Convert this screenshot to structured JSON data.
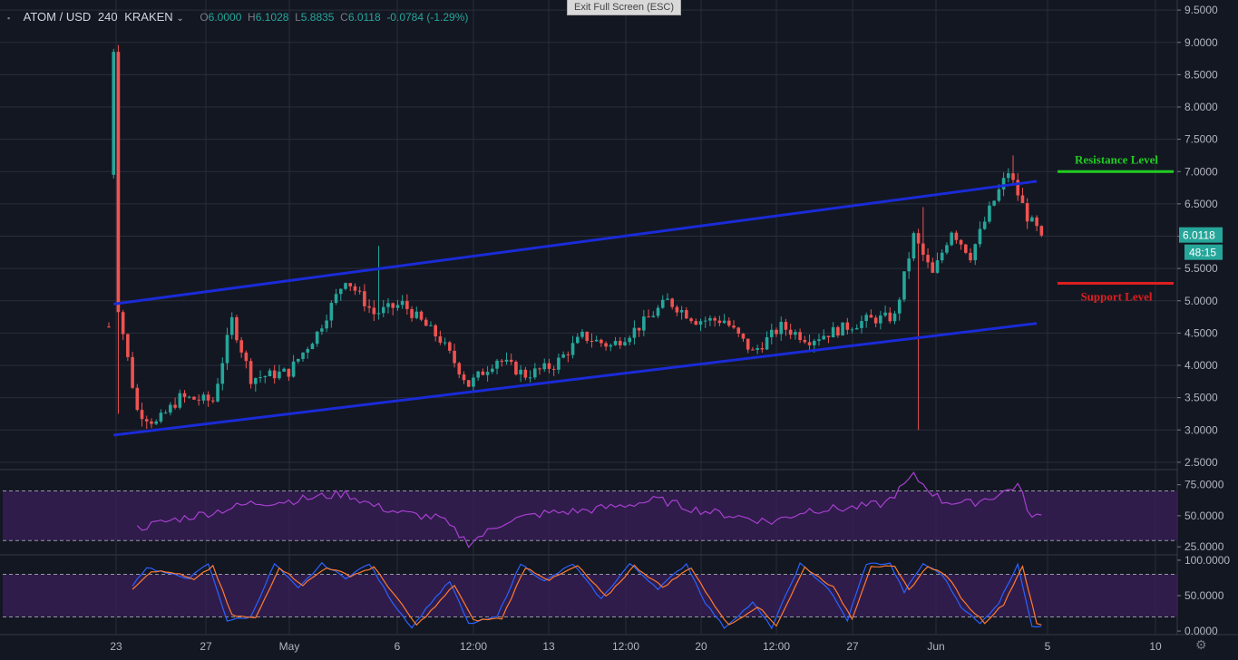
{
  "header": {
    "symbol": "ATOM / USD",
    "interval": "240",
    "exchange": "KRAKEN",
    "o_label": "O",
    "o_value": "6.0000",
    "h_label": "H",
    "h_value": "6.1028",
    "l_label": "L",
    "l_value": "5.8835",
    "c_label": "C",
    "c_value": "6.0118",
    "change": "-0.0784 (-1.29%)"
  },
  "exit_fullscreen_label": "Exit Full Screen (ESC)",
  "chart_data": [
    {
      "type": "candlestick",
      "x_ticks": [
        "23",
        "27",
        "May",
        "6",
        "12:00",
        "13",
        "12:00",
        "20",
        "12:00",
        "27",
        "Jun",
        "5",
        "10"
      ],
      "y_ticks": [
        "9.5000",
        "9.0000",
        "8.5000",
        "8.0000",
        "7.5000",
        "7.0000",
        "6.5000",
        "6.0000",
        "5.5000",
        "5.0000",
        "4.5000",
        "4.0000",
        "3.5000",
        "3.0000",
        "2.5000"
      ],
      "ylim": [
        2.4,
        9.6
      ],
      "last_price": "6.0118",
      "countdown": "48:15",
      "key_points": [
        {
          "x": 0,
          "value": 4.6
        },
        {
          "x": 1,
          "value": 8.9
        },
        {
          "x": 2,
          "value": 4.9
        },
        {
          "x": 6,
          "value": 3.3
        },
        {
          "x": 10,
          "value": 3.1
        },
        {
          "x": 15,
          "value": 3.5
        },
        {
          "x": 22,
          "value": 3.45
        },
        {
          "x": 26,
          "value": 4.7
        },
        {
          "x": 30,
          "value": 3.8
        },
        {
          "x": 38,
          "value": 3.9
        },
        {
          "x": 44,
          "value": 4.5
        },
        {
          "x": 50,
          "value": 5.35
        },
        {
          "x": 56,
          "value": 4.8
        },
        {
          "x": 62,
          "value": 4.95
        },
        {
          "x": 70,
          "value": 4.4
        },
        {
          "x": 76,
          "value": 3.7
        },
        {
          "x": 82,
          "value": 4.1
        },
        {
          "x": 88,
          "value": 3.85
        },
        {
          "x": 94,
          "value": 4.0
        },
        {
          "x": 100,
          "value": 4.45
        },
        {
          "x": 106,
          "value": 4.3
        },
        {
          "x": 112,
          "value": 4.6
        },
        {
          "x": 118,
          "value": 5.0
        },
        {
          "x": 124,
          "value": 4.7
        },
        {
          "x": 130,
          "value": 4.7
        },
        {
          "x": 136,
          "value": 4.2
        },
        {
          "x": 142,
          "value": 4.6
        },
        {
          "x": 148,
          "value": 4.4
        },
        {
          "x": 154,
          "value": 4.55
        },
        {
          "x": 160,
          "value": 4.7
        },
        {
          "x": 166,
          "value": 4.75
        },
        {
          "x": 170,
          "value": 6.0
        },
        {
          "x": 174,
          "value": 5.4
        },
        {
          "x": 178,
          "value": 6.1
        },
        {
          "x": 182,
          "value": 5.7
        },
        {
          "x": 186,
          "value": 6.4
        },
        {
          "x": 190,
          "value": 7.0
        },
        {
          "x": 194,
          "value": 6.3
        },
        {
          "x": 197,
          "value": 6.01
        }
      ],
      "channel": [
        {
          "name": "upper",
          "from": [
            1,
            4.95
          ],
          "to": [
            196,
            6.85
          ]
        },
        {
          "name": "lower",
          "from": [
            1,
            2.92
          ],
          "to": [
            196,
            4.65
          ]
        }
      ],
      "levels": [
        {
          "label": "Resistance Level",
          "value": 7.0,
          "color": "#22cc22"
        },
        {
          "label": "Support Level",
          "value": 5.27,
          "color": "#dd1f1f"
        }
      ],
      "colors": {
        "up": "#26a69a",
        "down": "#ef5350",
        "channel": "#1a2bd8",
        "grid": "#2a2e39"
      }
    },
    {
      "type": "line",
      "indicator": "rsi",
      "y_ticks": [
        "75.0000",
        "50.0000",
        "25.0000"
      ],
      "ylim": [
        20,
        85
      ],
      "bands": [
        70,
        30
      ],
      "key_points": [
        {
          "x": 6,
          "value": 40
        },
        {
          "x": 14,
          "value": 47
        },
        {
          "x": 22,
          "value": 53
        },
        {
          "x": 30,
          "value": 60
        },
        {
          "x": 38,
          "value": 62
        },
        {
          "x": 44,
          "value": 65
        },
        {
          "x": 50,
          "value": 68
        },
        {
          "x": 56,
          "value": 58
        },
        {
          "x": 62,
          "value": 52
        },
        {
          "x": 70,
          "value": 48
        },
        {
          "x": 76,
          "value": 28
        },
        {
          "x": 84,
          "value": 46
        },
        {
          "x": 92,
          "value": 52
        },
        {
          "x": 100,
          "value": 54
        },
        {
          "x": 108,
          "value": 58
        },
        {
          "x": 116,
          "value": 63
        },
        {
          "x": 124,
          "value": 55
        },
        {
          "x": 132,
          "value": 50
        },
        {
          "x": 140,
          "value": 45
        },
        {
          "x": 148,
          "value": 55
        },
        {
          "x": 156,
          "value": 56
        },
        {
          "x": 164,
          "value": 60
        },
        {
          "x": 170,
          "value": 82
        },
        {
          "x": 176,
          "value": 62
        },
        {
          "x": 182,
          "value": 60
        },
        {
          "x": 188,
          "value": 67
        },
        {
          "x": 192,
          "value": 75
        },
        {
          "x": 195,
          "value": 48
        },
        {
          "x": 197,
          "value": 50
        }
      ],
      "color": "#a73fcf"
    },
    {
      "type": "line",
      "indicator": "stochastic",
      "y_ticks": [
        "100.0000",
        "50.0000",
        "0.0000"
      ],
      "ylim": [
        -5,
        105
      ],
      "bands": [
        80,
        20
      ],
      "series": [
        {
          "key_points": [
            {
              "x": 5,
              "value": 65
            },
            {
              "x": 8,
              "value": 90
            },
            {
              "x": 13,
              "value": 80
            },
            {
              "x": 17,
              "value": 75
            },
            {
              "x": 21,
              "value": 95
            },
            {
              "x": 25,
              "value": 15
            },
            {
              "x": 30,
              "value": 20
            },
            {
              "x": 35,
              "value": 95
            },
            {
              "x": 40,
              "value": 60
            },
            {
              "x": 45,
              "value": 95
            },
            {
              "x": 50,
              "value": 75
            },
            {
              "x": 55,
              "value": 95
            },
            {
              "x": 60,
              "value": 40
            },
            {
              "x": 64,
              "value": 5
            },
            {
              "x": 68,
              "value": 40
            },
            {
              "x": 72,
              "value": 70
            },
            {
              "x": 76,
              "value": 10
            },
            {
              "x": 82,
              "value": 20
            },
            {
              "x": 87,
              "value": 95
            },
            {
              "x": 92,
              "value": 70
            },
            {
              "x": 98,
              "value": 95
            },
            {
              "x": 104,
              "value": 45
            },
            {
              "x": 110,
              "value": 95
            },
            {
              "x": 116,
              "value": 60
            },
            {
              "x": 122,
              "value": 95
            },
            {
              "x": 126,
              "value": 40
            },
            {
              "x": 130,
              "value": 5
            },
            {
              "x": 136,
              "value": 40
            },
            {
              "x": 140,
              "value": 5
            },
            {
              "x": 146,
              "value": 95
            },
            {
              "x": 152,
              "value": 60
            },
            {
              "x": 156,
              "value": 15
            },
            {
              "x": 160,
              "value": 95
            },
            {
              "x": 165,
              "value": 95
            },
            {
              "x": 168,
              "value": 55
            },
            {
              "x": 172,
              "value": 95
            },
            {
              "x": 176,
              "value": 80
            },
            {
              "x": 180,
              "value": 35
            },
            {
              "x": 184,
              "value": 10
            },
            {
              "x": 188,
              "value": 40
            },
            {
              "x": 192,
              "value": 95
            },
            {
              "x": 195,
              "value": 5
            },
            {
              "x": 197,
              "value": 8
            }
          ],
          "color": "#2962ff"
        },
        {
          "key_points": [
            {
              "x": 5,
              "value": 60
            },
            {
              "x": 9,
              "value": 85
            },
            {
              "x": 14,
              "value": 82
            },
            {
              "x": 18,
              "value": 72
            },
            {
              "x": 22,
              "value": 92
            },
            {
              "x": 26,
              "value": 22
            },
            {
              "x": 31,
              "value": 18
            },
            {
              "x": 36,
              "value": 90
            },
            {
              "x": 41,
              "value": 65
            },
            {
              "x": 46,
              "value": 90
            },
            {
              "x": 51,
              "value": 78
            },
            {
              "x": 56,
              "value": 90
            },
            {
              "x": 61,
              "value": 45
            },
            {
              "x": 65,
              "value": 8
            },
            {
              "x": 69,
              "value": 35
            },
            {
              "x": 73,
              "value": 65
            },
            {
              "x": 77,
              "value": 15
            },
            {
              "x": 83,
              "value": 18
            },
            {
              "x": 88,
              "value": 90
            },
            {
              "x": 93,
              "value": 72
            },
            {
              "x": 99,
              "value": 92
            },
            {
              "x": 105,
              "value": 48
            },
            {
              "x": 111,
              "value": 92
            },
            {
              "x": 117,
              "value": 62
            },
            {
              "x": 123,
              "value": 90
            },
            {
              "x": 127,
              "value": 45
            },
            {
              "x": 131,
              "value": 8
            },
            {
              "x": 137,
              "value": 35
            },
            {
              "x": 141,
              "value": 8
            },
            {
              "x": 147,
              "value": 90
            },
            {
              "x": 153,
              "value": 62
            },
            {
              "x": 157,
              "value": 18
            },
            {
              "x": 161,
              "value": 92
            },
            {
              "x": 166,
              "value": 90
            },
            {
              "x": 169,
              "value": 58
            },
            {
              "x": 173,
              "value": 92
            },
            {
              "x": 177,
              "value": 78
            },
            {
              "x": 181,
              "value": 38
            },
            {
              "x": 185,
              "value": 12
            },
            {
              "x": 189,
              "value": 38
            },
            {
              "x": 193,
              "value": 92
            },
            {
              "x": 196,
              "value": 10
            },
            {
              "x": 197,
              "value": 9
            }
          ],
          "color": "#ff7a2f"
        }
      ]
    }
  ]
}
